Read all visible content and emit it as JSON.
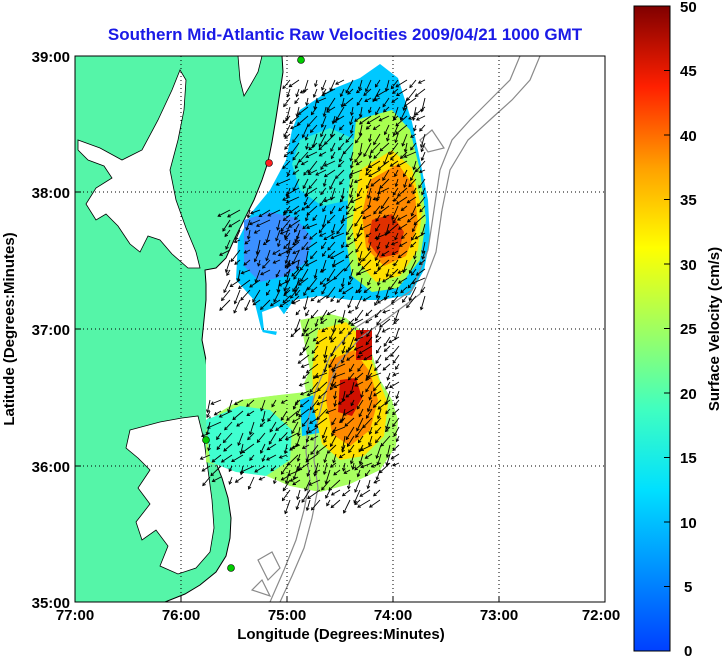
{
  "title": "Southern Mid-Atlantic Raw Velocities 2009/04/21 1000 GMT",
  "x_axis": {
    "label": "Longitude (Degrees:Minutes)",
    "ticks": [
      "77:00",
      "76:00",
      "75:00",
      "74:00",
      "73:00",
      "72:00"
    ]
  },
  "y_axis": {
    "label": "Latitude (Degrees:Minutes)",
    "ticks": [
      "39:00",
      "38:00",
      "37:00",
      "36:00",
      "35:00"
    ]
  },
  "colorbar": {
    "label": "Surface Velocity (cm/s)",
    "ticks": [
      "50",
      "45",
      "40",
      "35",
      "30",
      "25",
      "20",
      "15",
      "10",
      "5",
      "0"
    ],
    "range": [
      0,
      50
    ],
    "colormap": "jet"
  },
  "chart_data": {
    "type": "heatmap",
    "title": "Southern Mid-Atlantic Raw Velocities 2009/04/21 1000 GMT",
    "xlabel": "Longitude (Degrees:Minutes)",
    "ylabel": "Latitude (Degrees:Minutes)",
    "xlim": [
      -77,
      -72
    ],
    "ylim": [
      35,
      39
    ],
    "grid": "dotted",
    "land_color": "#55f5a8",
    "station_colors": [
      "#00cc00",
      "#ff2020"
    ],
    "stations": [
      {
        "lon": -74.91,
        "lat": 39.0,
        "color": "#00cc00"
      },
      {
        "lon": -75.16,
        "lat": 38.22,
        "color": "#ff2020"
      },
      {
        "lon": -75.73,
        "lat": 36.19,
        "color": "#00cc00"
      },
      {
        "lon": -75.47,
        "lat": 35.25,
        "color": "#00cc00"
      }
    ]
  }
}
